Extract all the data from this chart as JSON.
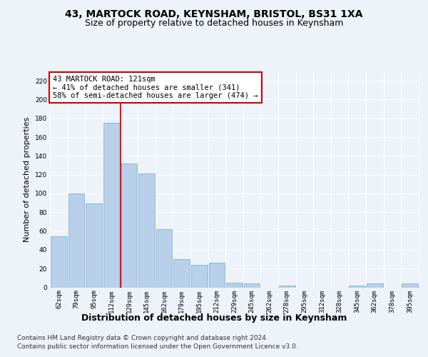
{
  "title1": "43, MARTOCK ROAD, KEYNSHAM, BRISTOL, BS31 1XA",
  "title2": "Size of property relative to detached houses in Keynsham",
  "xlabel": "Distribution of detached houses by size in Keynsham",
  "ylabel": "Number of detached properties",
  "categories": [
    "62sqm",
    "79sqm",
    "95sqm",
    "112sqm",
    "129sqm",
    "145sqm",
    "162sqm",
    "179sqm",
    "195sqm",
    "212sqm",
    "229sqm",
    "245sqm",
    "262sqm",
    "278sqm",
    "295sqm",
    "312sqm",
    "328sqm",
    "345sqm",
    "362sqm",
    "378sqm",
    "395sqm"
  ],
  "values": [
    54,
    100,
    89,
    175,
    132,
    121,
    62,
    30,
    24,
    26,
    5,
    4,
    0,
    2,
    0,
    0,
    0,
    2,
    4,
    0,
    4
  ],
  "bar_color": "#b8d0ea",
  "bar_edge_color": "#7aaed4",
  "red_line_x": 3.5,
  "annotation_text": "43 MARTOCK ROAD: 121sqm\n← 41% of detached houses are smaller (341)\n58% of semi-detached houses are larger (474) →",
  "annotation_box_color": "#ffffff",
  "annotation_box_edge": "#cc0000",
  "footer1": "Contains HM Land Registry data © Crown copyright and database right 2024.",
  "footer2": "Contains public sector information licensed under the Open Government Licence v3.0.",
  "bg_color": "#eef2f9",
  "plot_bg_color": "#eef2f9",
  "ylim": [
    0,
    230
  ],
  "yticks": [
    0,
    20,
    40,
    60,
    80,
    100,
    120,
    140,
    160,
    180,
    200,
    220
  ],
  "title1_fontsize": 10,
  "title2_fontsize": 9,
  "xlabel_fontsize": 9,
  "ylabel_fontsize": 8,
  "tick_fontsize": 6.5,
  "footer_fontsize": 6.5,
  "ann_fontsize": 7.5
}
